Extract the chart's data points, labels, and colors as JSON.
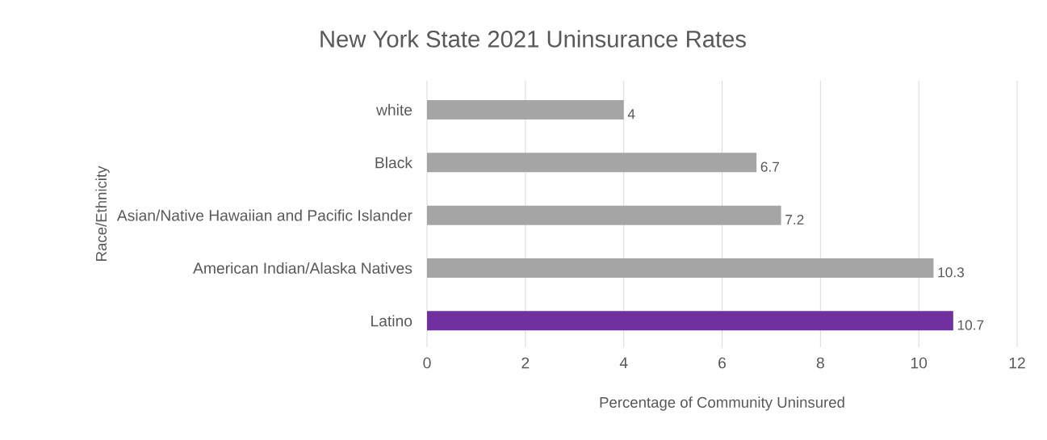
{
  "chart_data": {
    "type": "bar",
    "orientation": "horizontal",
    "title": "New York State 2021 Uninsurance Rates",
    "xlabel": "Percentage of Community Uninsured",
    "ylabel": "Race/Ethnicity",
    "categories": [
      "white",
      "Black",
      "Asian/Native Hawaiian and Pacific Islander",
      "American Indian/Alaska Natives",
      "Latino"
    ],
    "values": [
      4,
      6.7,
      7.2,
      10.3,
      10.7
    ],
    "colors": [
      "#a5a5a5",
      "#a5a5a5",
      "#a5a5a5",
      "#a5a5a5",
      "#7030a0"
    ],
    "xlim": [
      0,
      12
    ],
    "xticks": [
      0,
      2,
      4,
      6,
      8,
      10,
      12
    ],
    "grid": "x",
    "data_labels": true
  }
}
